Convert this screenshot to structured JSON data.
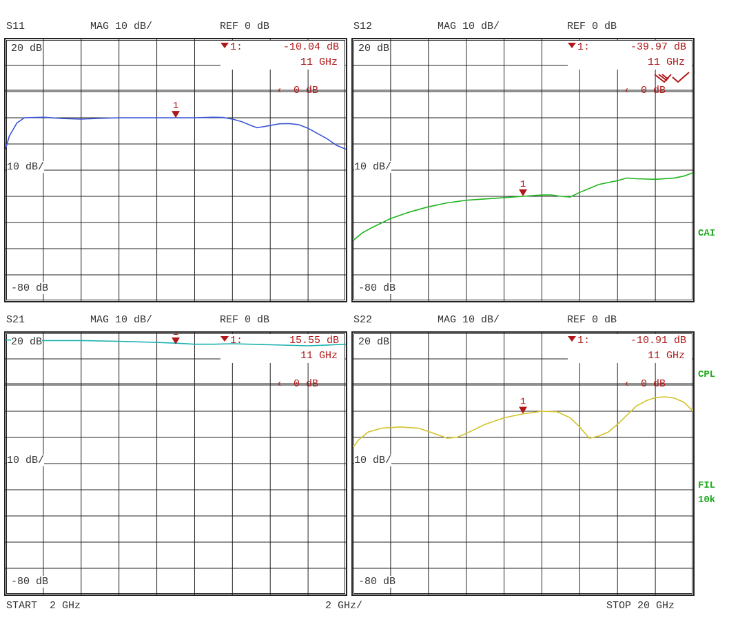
{
  "panels": [
    {
      "param": "S11",
      "scale": "MAG 10 dB/",
      "ref": "REF 0 dB",
      "top_label": "20 dB",
      "mid_label": "10 dB/",
      "bottom_label": "-80 dB",
      "marker_id": "1:",
      "marker_value": "-10.04 dB",
      "marker_freq": "11 GHz",
      "ref_marker": "0 dB",
      "marker_num": "1",
      "color": "#3b55d6"
    },
    {
      "param": "S12",
      "scale": "MAG 10 dB/",
      "ref": "REF 0 dB",
      "top_label": "20 dB",
      "mid_label": "10 dB/",
      "bottom_label": "-80 dB",
      "marker_id": "1:",
      "marker_value": "-39.97 dB",
      "marker_freq": "11 GHz",
      "ref_marker": "0 dB",
      "marker_num": "1",
      "color": "#1db41d"
    },
    {
      "param": "S21",
      "scale": "MAG 10 dB/",
      "ref": "REF 0 dB",
      "top_label": "20 dB",
      "mid_label": "10 dB/",
      "bottom_label": "-80 dB",
      "marker_id": "1:",
      "marker_value": "15.55 dB",
      "marker_freq": "11 GHz",
      "ref_marker": "0 dB",
      "marker_num": "1",
      "color": "#1ab0b0"
    },
    {
      "param": "S22",
      "scale": "MAG 10 dB/",
      "ref": "REF 0 dB",
      "top_label": "20 dB",
      "mid_label": "10 dB/",
      "bottom_label": "-80 dB",
      "marker_id": "1:",
      "marker_value": "-10.91 dB",
      "marker_freq": "11 GHz",
      "ref_marker": "0 dB",
      "marker_num": "1",
      "color": "#d4c22a"
    }
  ],
  "side_labels": {
    "cal": "CAI",
    "cpl": "CPL",
    "fil": "FIL",
    "fil_bw": "10k"
  },
  "footer": {
    "start": "START  2 GHz",
    "span": "2 GHz/",
    "stop": "STOP 20 GHz"
  },
  "colors": {
    "marker": "#b01818",
    "grid": "#222222"
  },
  "chart_data": [
    {
      "type": "line",
      "title": "S11",
      "xlabel": "GHz",
      "ylabel": "dB",
      "xlim": [
        2,
        20
      ],
      "ylim": [
        -80,
        20
      ],
      "grid": true,
      "marker": {
        "x": 11,
        "y": -10.04
      },
      "x": [
        2,
        2.2,
        2.6,
        3,
        4,
        5,
        6,
        7,
        8,
        9,
        10,
        11,
        12,
        13,
        13.5,
        14,
        14.5,
        15,
        15.3,
        15.8,
        16.5,
        17,
        17.5,
        18,
        18.5,
        19,
        19.5,
        20
      ],
      "y": [
        -22,
        -17,
        -12,
        -10,
        -9.8,
        -10.3,
        -10.5,
        -10.2,
        -10,
        -10,
        -10,
        -10,
        -10,
        -9.8,
        -9.9,
        -10.5,
        -11.5,
        -13,
        -13.8,
        -13.2,
        -12.3,
        -12.2,
        -12.6,
        -14,
        -16,
        -18,
        -20.5,
        -22
      ]
    },
    {
      "type": "line",
      "title": "S12",
      "xlabel": "GHz",
      "ylabel": "dB",
      "xlim": [
        2,
        20
      ],
      "ylim": [
        -80,
        20
      ],
      "grid": true,
      "marker": {
        "x": 11,
        "y": -39.97
      },
      "x": [
        2,
        2.5,
        3,
        4,
        5,
        6,
        7,
        8,
        9,
        10,
        11,
        12,
        12.5,
        13,
        13.5,
        14,
        14.5,
        15,
        16,
        16.5,
        17,
        18,
        19,
        19.5,
        20
      ],
      "y": [
        -57,
        -54,
        -52,
        -48.5,
        -46,
        -44,
        -42.5,
        -41.5,
        -41,
        -40.5,
        -40,
        -39.5,
        -39.5,
        -40,
        -40.3,
        -38.5,
        -37,
        -35.5,
        -34,
        -33,
        -33.3,
        -33.5,
        -33,
        -32.3,
        -31
      ]
    },
    {
      "type": "line",
      "title": "S21",
      "xlabel": "GHz",
      "ylabel": "dB",
      "xlim": [
        2,
        20
      ],
      "ylim": [
        -80,
        20
      ],
      "grid": true,
      "marker": {
        "x": 11,
        "y": 15.55
      },
      "x": [
        2,
        4,
        6,
        8,
        10,
        11,
        12,
        13,
        14,
        16,
        18,
        19,
        20
      ],
      "y": [
        17.2,
        17,
        17,
        16.7,
        16.3,
        16,
        15.6,
        15.6,
        15.8,
        15.4,
        15,
        15.3,
        15.6
      ]
    },
    {
      "type": "line",
      "title": "S22",
      "xlabel": "GHz",
      "ylabel": "dB",
      "xlim": [
        2,
        20
      ],
      "ylim": [
        -80,
        20
      ],
      "grid": true,
      "marker": {
        "x": 11,
        "y": -10.91
      },
      "x": [
        2,
        2.3,
        2.8,
        3.5,
        4.5,
        5.5,
        6.5,
        7,
        7.5,
        8,
        9,
        10,
        11,
        12,
        12.8,
        13.5,
        14,
        14.5,
        15,
        15.5,
        16,
        16.5,
        17,
        17.5,
        18,
        18.5,
        19,
        19.5,
        20
      ],
      "y": [
        -24,
        -21,
        -18,
        -16.5,
        -16,
        -16.5,
        -19,
        -20.3,
        -20,
        -18.5,
        -15,
        -12.5,
        -11,
        -10,
        -10.2,
        -12.5,
        -16,
        -20.3,
        -19.5,
        -18,
        -15,
        -11.5,
        -8,
        -6,
        -4.8,
        -4.5,
        -5,
        -6.5,
        -10
      ]
    }
  ]
}
